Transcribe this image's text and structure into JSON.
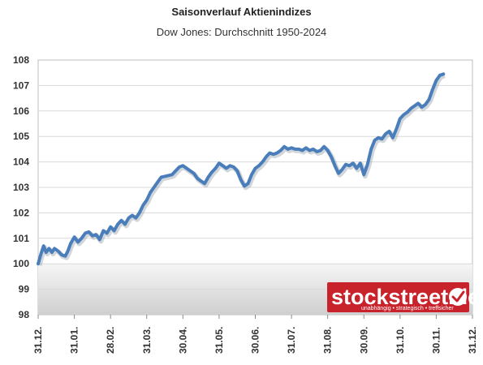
{
  "chart_data": {
    "type": "line",
    "title": "Saisonverlauf Aktienindizes",
    "subtitle": "Dow Jones: Durchschnitt 1950-2024",
    "xlabel": "",
    "ylabel": "",
    "ylim": [
      98,
      108
    ],
    "y_ticks": [
      "98",
      "99",
      "100",
      "101",
      "102",
      "103",
      "104",
      "105",
      "106",
      "107",
      "108"
    ],
    "x_ticks": [
      "31.12.",
      "31.01.",
      "28.02.",
      "31.03.",
      "30.04.",
      "31.05.",
      "30.06.",
      "31.07.",
      "31.08.",
      "30.09.",
      "31.10.",
      "30.11.",
      "31.12."
    ],
    "grid": true,
    "legend": "none",
    "line_color": "#4a7ebb",
    "series": [
      {
        "points": [
          [
            0,
            100.0
          ],
          [
            0.08,
            100.4
          ],
          [
            0.15,
            100.7
          ],
          [
            0.22,
            100.45
          ],
          [
            0.3,
            100.6
          ],
          [
            0.38,
            100.45
          ],
          [
            0.45,
            100.6
          ],
          [
            0.55,
            100.5
          ],
          [
            0.65,
            100.35
          ],
          [
            0.75,
            100.3
          ],
          [
            0.82,
            100.5
          ],
          [
            0.9,
            100.8
          ],
          [
            1.0,
            101.05
          ],
          [
            1.1,
            100.85
          ],
          [
            1.2,
            101.0
          ],
          [
            1.3,
            101.2
          ],
          [
            1.4,
            101.25
          ],
          [
            1.5,
            101.1
          ],
          [
            1.6,
            101.15
          ],
          [
            1.7,
            100.95
          ],
          [
            1.8,
            101.3
          ],
          [
            1.9,
            101.2
          ],
          [
            2.0,
            101.45
          ],
          [
            2.1,
            101.3
          ],
          [
            2.2,
            101.55
          ],
          [
            2.3,
            101.7
          ],
          [
            2.4,
            101.55
          ],
          [
            2.5,
            101.8
          ],
          [
            2.6,
            101.9
          ],
          [
            2.7,
            101.8
          ],
          [
            2.8,
            102.0
          ],
          [
            2.9,
            102.3
          ],
          [
            3.0,
            102.5
          ],
          [
            3.1,
            102.8
          ],
          [
            3.2,
            103.0
          ],
          [
            3.3,
            103.2
          ],
          [
            3.4,
            103.4
          ],
          [
            3.55,
            103.45
          ],
          [
            3.7,
            103.5
          ],
          [
            3.8,
            103.65
          ],
          [
            3.9,
            103.8
          ],
          [
            4.0,
            103.85
          ],
          [
            4.1,
            103.75
          ],
          [
            4.2,
            103.65
          ],
          [
            4.3,
            103.55
          ],
          [
            4.4,
            103.35
          ],
          [
            4.5,
            103.25
          ],
          [
            4.6,
            103.15
          ],
          [
            4.7,
            103.4
          ],
          [
            4.8,
            103.6
          ],
          [
            4.9,
            103.75
          ],
          [
            5.0,
            103.95
          ],
          [
            5.1,
            103.85
          ],
          [
            5.2,
            103.75
          ],
          [
            5.3,
            103.85
          ],
          [
            5.4,
            103.8
          ],
          [
            5.5,
            103.65
          ],
          [
            5.6,
            103.3
          ],
          [
            5.7,
            103.05
          ],
          [
            5.8,
            103.15
          ],
          [
            5.9,
            103.5
          ],
          [
            6.0,
            103.75
          ],
          [
            6.1,
            103.85
          ],
          [
            6.2,
            104.0
          ],
          [
            6.3,
            104.2
          ],
          [
            6.4,
            104.35
          ],
          [
            6.5,
            104.3
          ],
          [
            6.6,
            104.35
          ],
          [
            6.7,
            104.45
          ],
          [
            6.8,
            104.6
          ],
          [
            6.9,
            104.5
          ],
          [
            7.0,
            104.55
          ],
          [
            7.1,
            104.5
          ],
          [
            7.2,
            104.5
          ],
          [
            7.3,
            104.45
          ],
          [
            7.4,
            104.55
          ],
          [
            7.5,
            104.45
          ],
          [
            7.6,
            104.5
          ],
          [
            7.7,
            104.4
          ],
          [
            7.8,
            104.45
          ],
          [
            7.9,
            104.6
          ],
          [
            8.0,
            104.45
          ],
          [
            8.1,
            104.2
          ],
          [
            8.2,
            103.85
          ],
          [
            8.3,
            103.55
          ],
          [
            8.4,
            103.7
          ],
          [
            8.5,
            103.9
          ],
          [
            8.6,
            103.85
          ],
          [
            8.7,
            103.95
          ],
          [
            8.8,
            103.75
          ],
          [
            8.9,
            103.95
          ],
          [
            9.0,
            103.5
          ],
          [
            9.1,
            103.9
          ],
          [
            9.2,
            104.5
          ],
          [
            9.3,
            104.85
          ],
          [
            9.4,
            104.95
          ],
          [
            9.5,
            104.9
          ],
          [
            9.6,
            105.1
          ],
          [
            9.7,
            105.2
          ],
          [
            9.8,
            104.95
          ],
          [
            9.9,
            105.3
          ],
          [
            10.0,
            105.7
          ],
          [
            10.1,
            105.85
          ],
          [
            10.2,
            105.95
          ],
          [
            10.3,
            106.1
          ],
          [
            10.4,
            106.2
          ],
          [
            10.5,
            106.3
          ],
          [
            10.6,
            106.15
          ],
          [
            10.7,
            106.25
          ],
          [
            10.8,
            106.45
          ],
          [
            10.9,
            106.85
          ],
          [
            11.0,
            107.2
          ],
          [
            11.1,
            107.4
          ],
          [
            11.2,
            107.45
          ]
        ]
      }
    ]
  },
  "logo": {
    "brand": "stockstreet.de",
    "tagline": "unabhängig • strategisch • treffsicher",
    "colors": {
      "bg": "#c8222b",
      "check_bg": "#ffffff",
      "check": "#c8222b"
    }
  }
}
